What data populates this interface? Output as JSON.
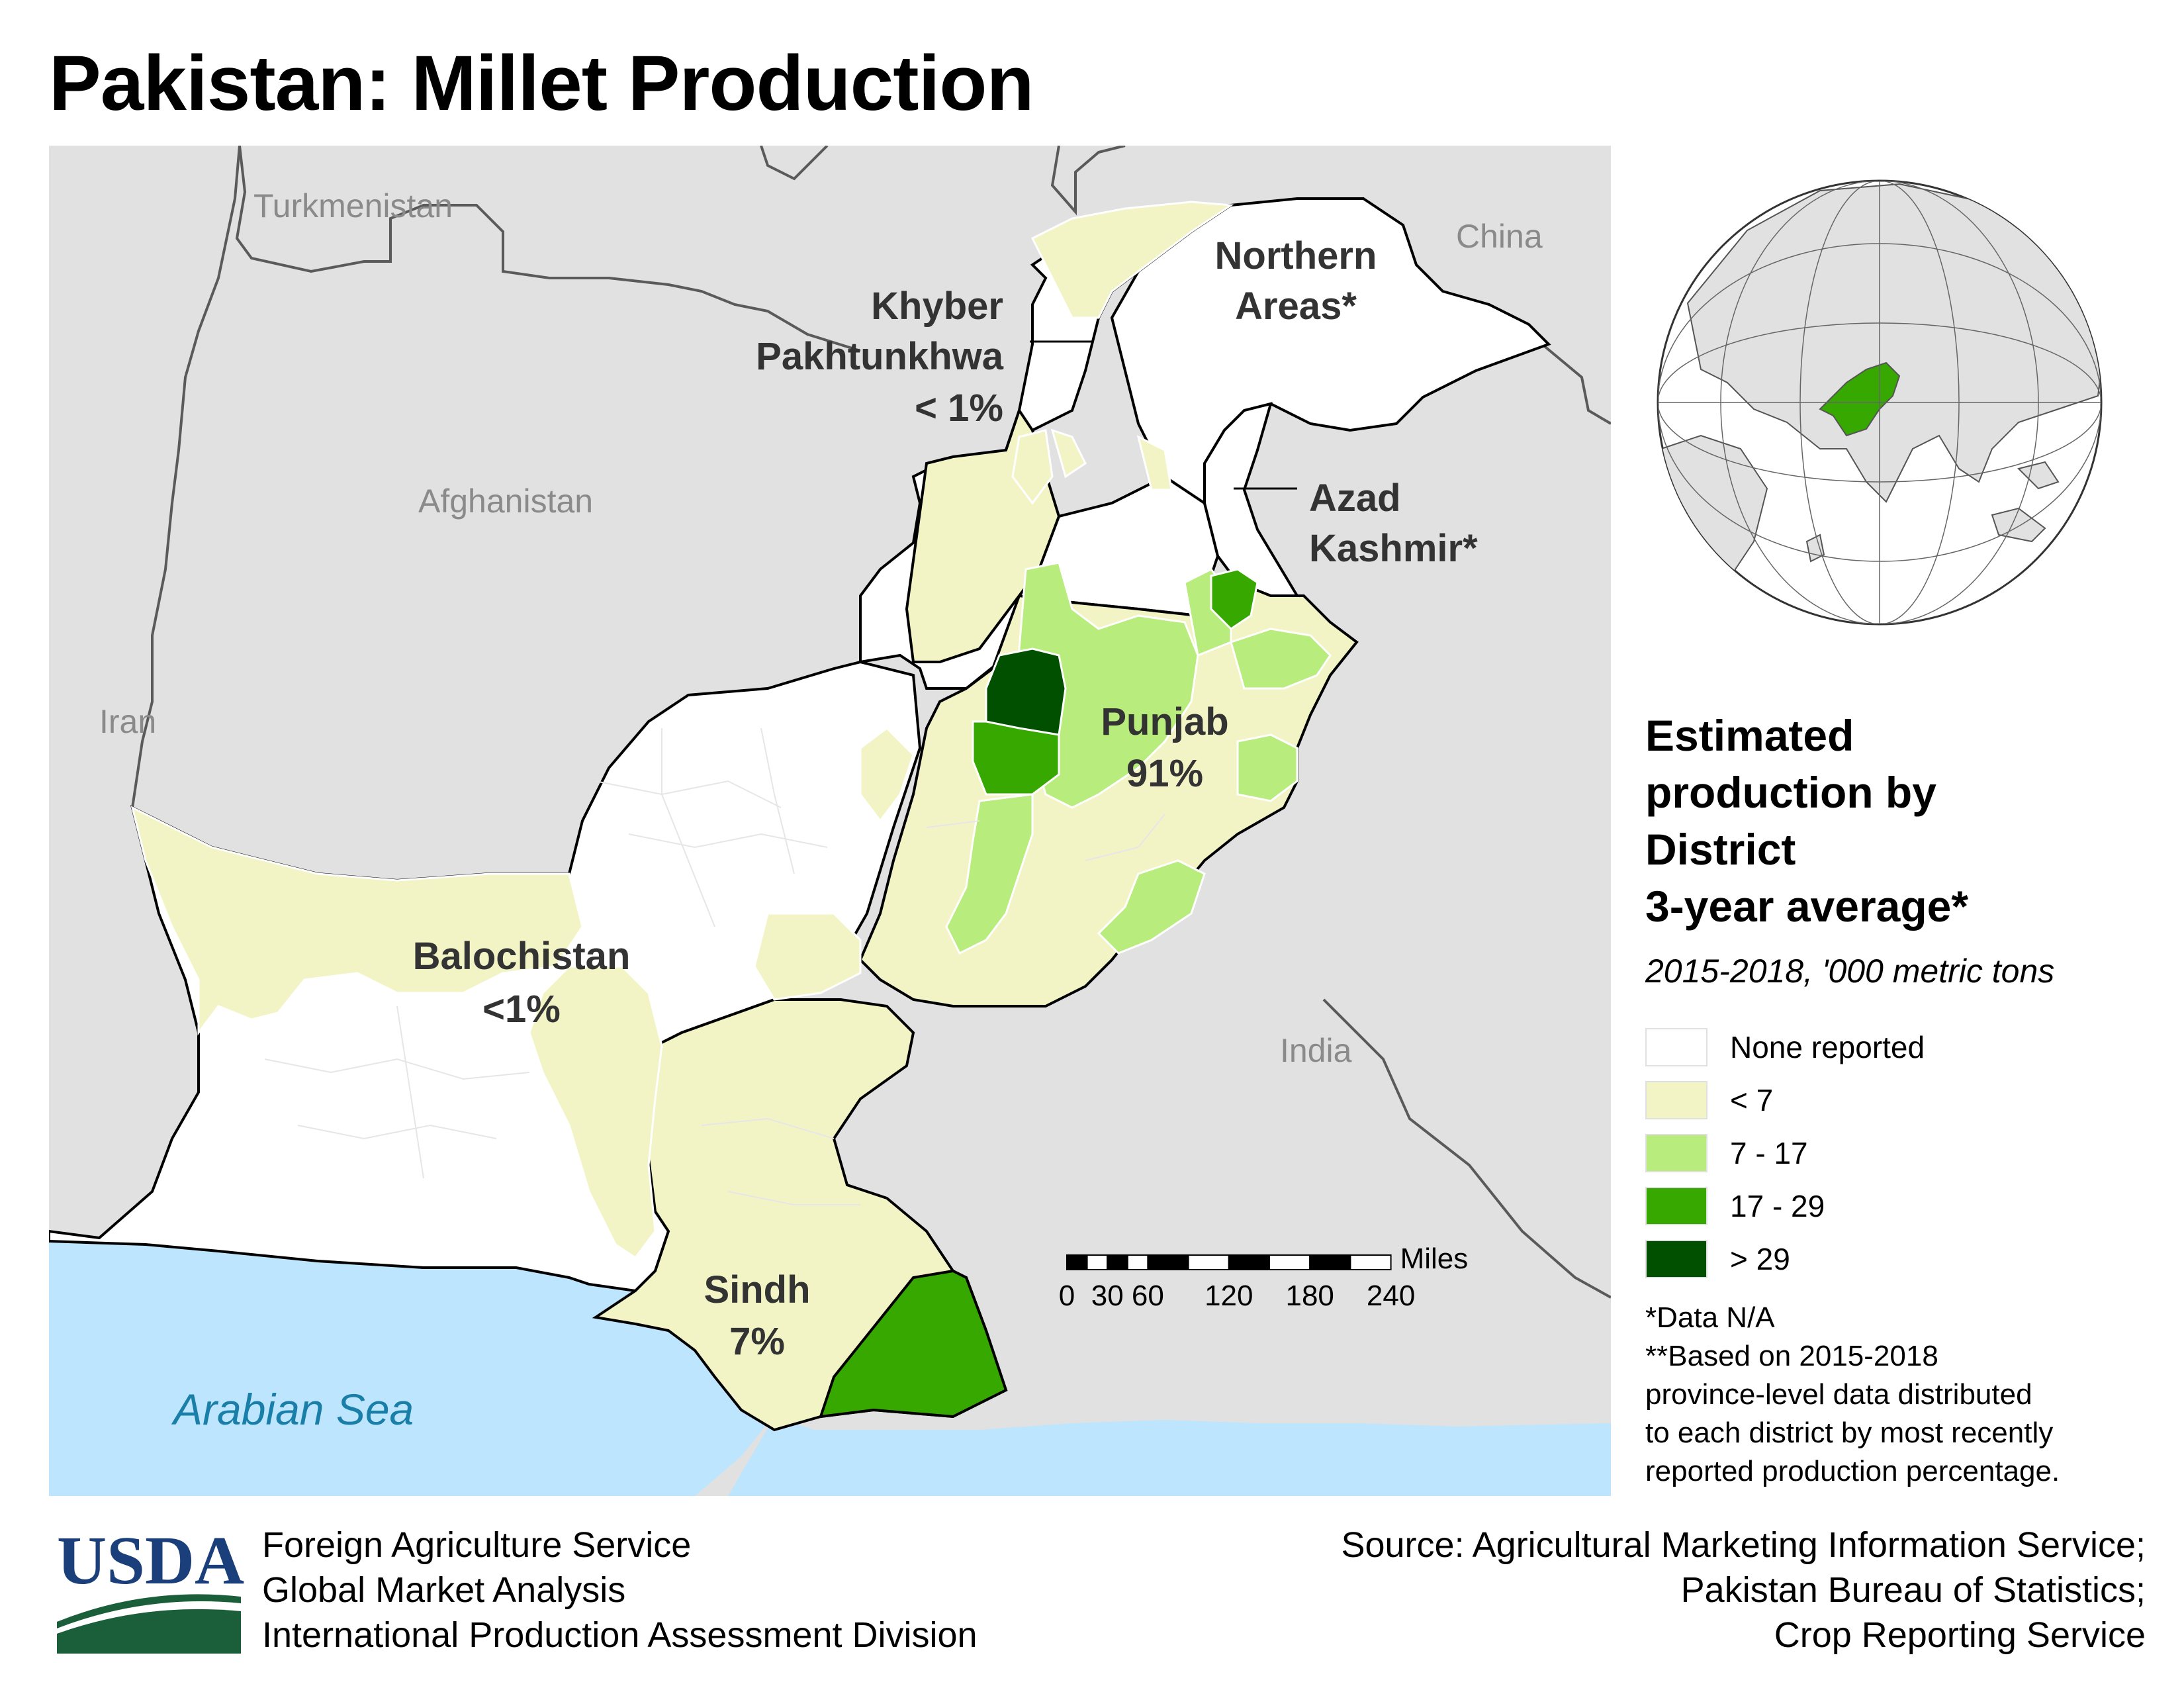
{
  "title": "Pakistan: Millet Production",
  "colors": {
    "none_reported": "#ffffff",
    "lt7": "#f3f4c5",
    "c7_17": "#b8ec7c",
    "c17_29": "#36a800",
    "gt29": "#005000",
    "neighbor_land": "#e1e1e1",
    "sea": "#bde5fd",
    "border": "#000000"
  },
  "map": {
    "countries": {
      "turkmenistan": "Turkmenistan",
      "china": "China",
      "afghanistan": "Afghanistan",
      "iran": "Iran",
      "india": "India"
    },
    "sea": "Arabian Sea",
    "provinces": {
      "northern_areas": {
        "name_line1": "Northern",
        "name_line2": "Areas*"
      },
      "khyber": {
        "name_line1": "Khyber",
        "name_line2": "Pakhtunkhwa",
        "share": "< 1%"
      },
      "azad_kashmir": {
        "name_line1": "Azad",
        "name_line2": "Kashmir*"
      },
      "punjab": {
        "name": "Punjab",
        "share": "91%"
      },
      "balochistan": {
        "name": "Balochistan",
        "share": "<1%"
      },
      "sindh": {
        "name": "Sindh",
        "share": "7%"
      }
    },
    "scale_bar": {
      "unit": "Miles",
      "ticks": [
        "0",
        "30",
        "60",
        "120",
        "180",
        "240"
      ],
      "tick_miles": [
        0,
        30,
        60,
        120,
        180,
        240
      ]
    }
  },
  "legend": {
    "title_lines": [
      "Estimated",
      "production by",
      "District",
      "3-year average*"
    ],
    "subtitle": "2015-2018, '000 metric tons",
    "items": [
      {
        "label": "None reported",
        "color": "#ffffff"
      },
      {
        "label": "< 7",
        "color": "#f3f4c5"
      },
      {
        "label": "7 - 17",
        "color": "#b8ec7c"
      },
      {
        "label": "17 - 29",
        "color": "#36a800"
      },
      {
        "label": "> 29",
        "color": "#005000"
      }
    ],
    "notes": [
      "*Data N/A",
      "**Based on 2015-2018",
      "province-level data distributed",
      "to each district by most recently",
      "reported production percentage."
    ]
  },
  "footer": {
    "logo_text": "USDA",
    "agency_lines": [
      "Foreign Agriculture Service",
      "Global Market Analysis",
      "International Production Assessment Division"
    ],
    "source_lines": [
      "Source: Agricultural Marketing Information Service;",
      "Pakistan Bureau of Statistics;",
      "Crop Reporting Service"
    ]
  }
}
